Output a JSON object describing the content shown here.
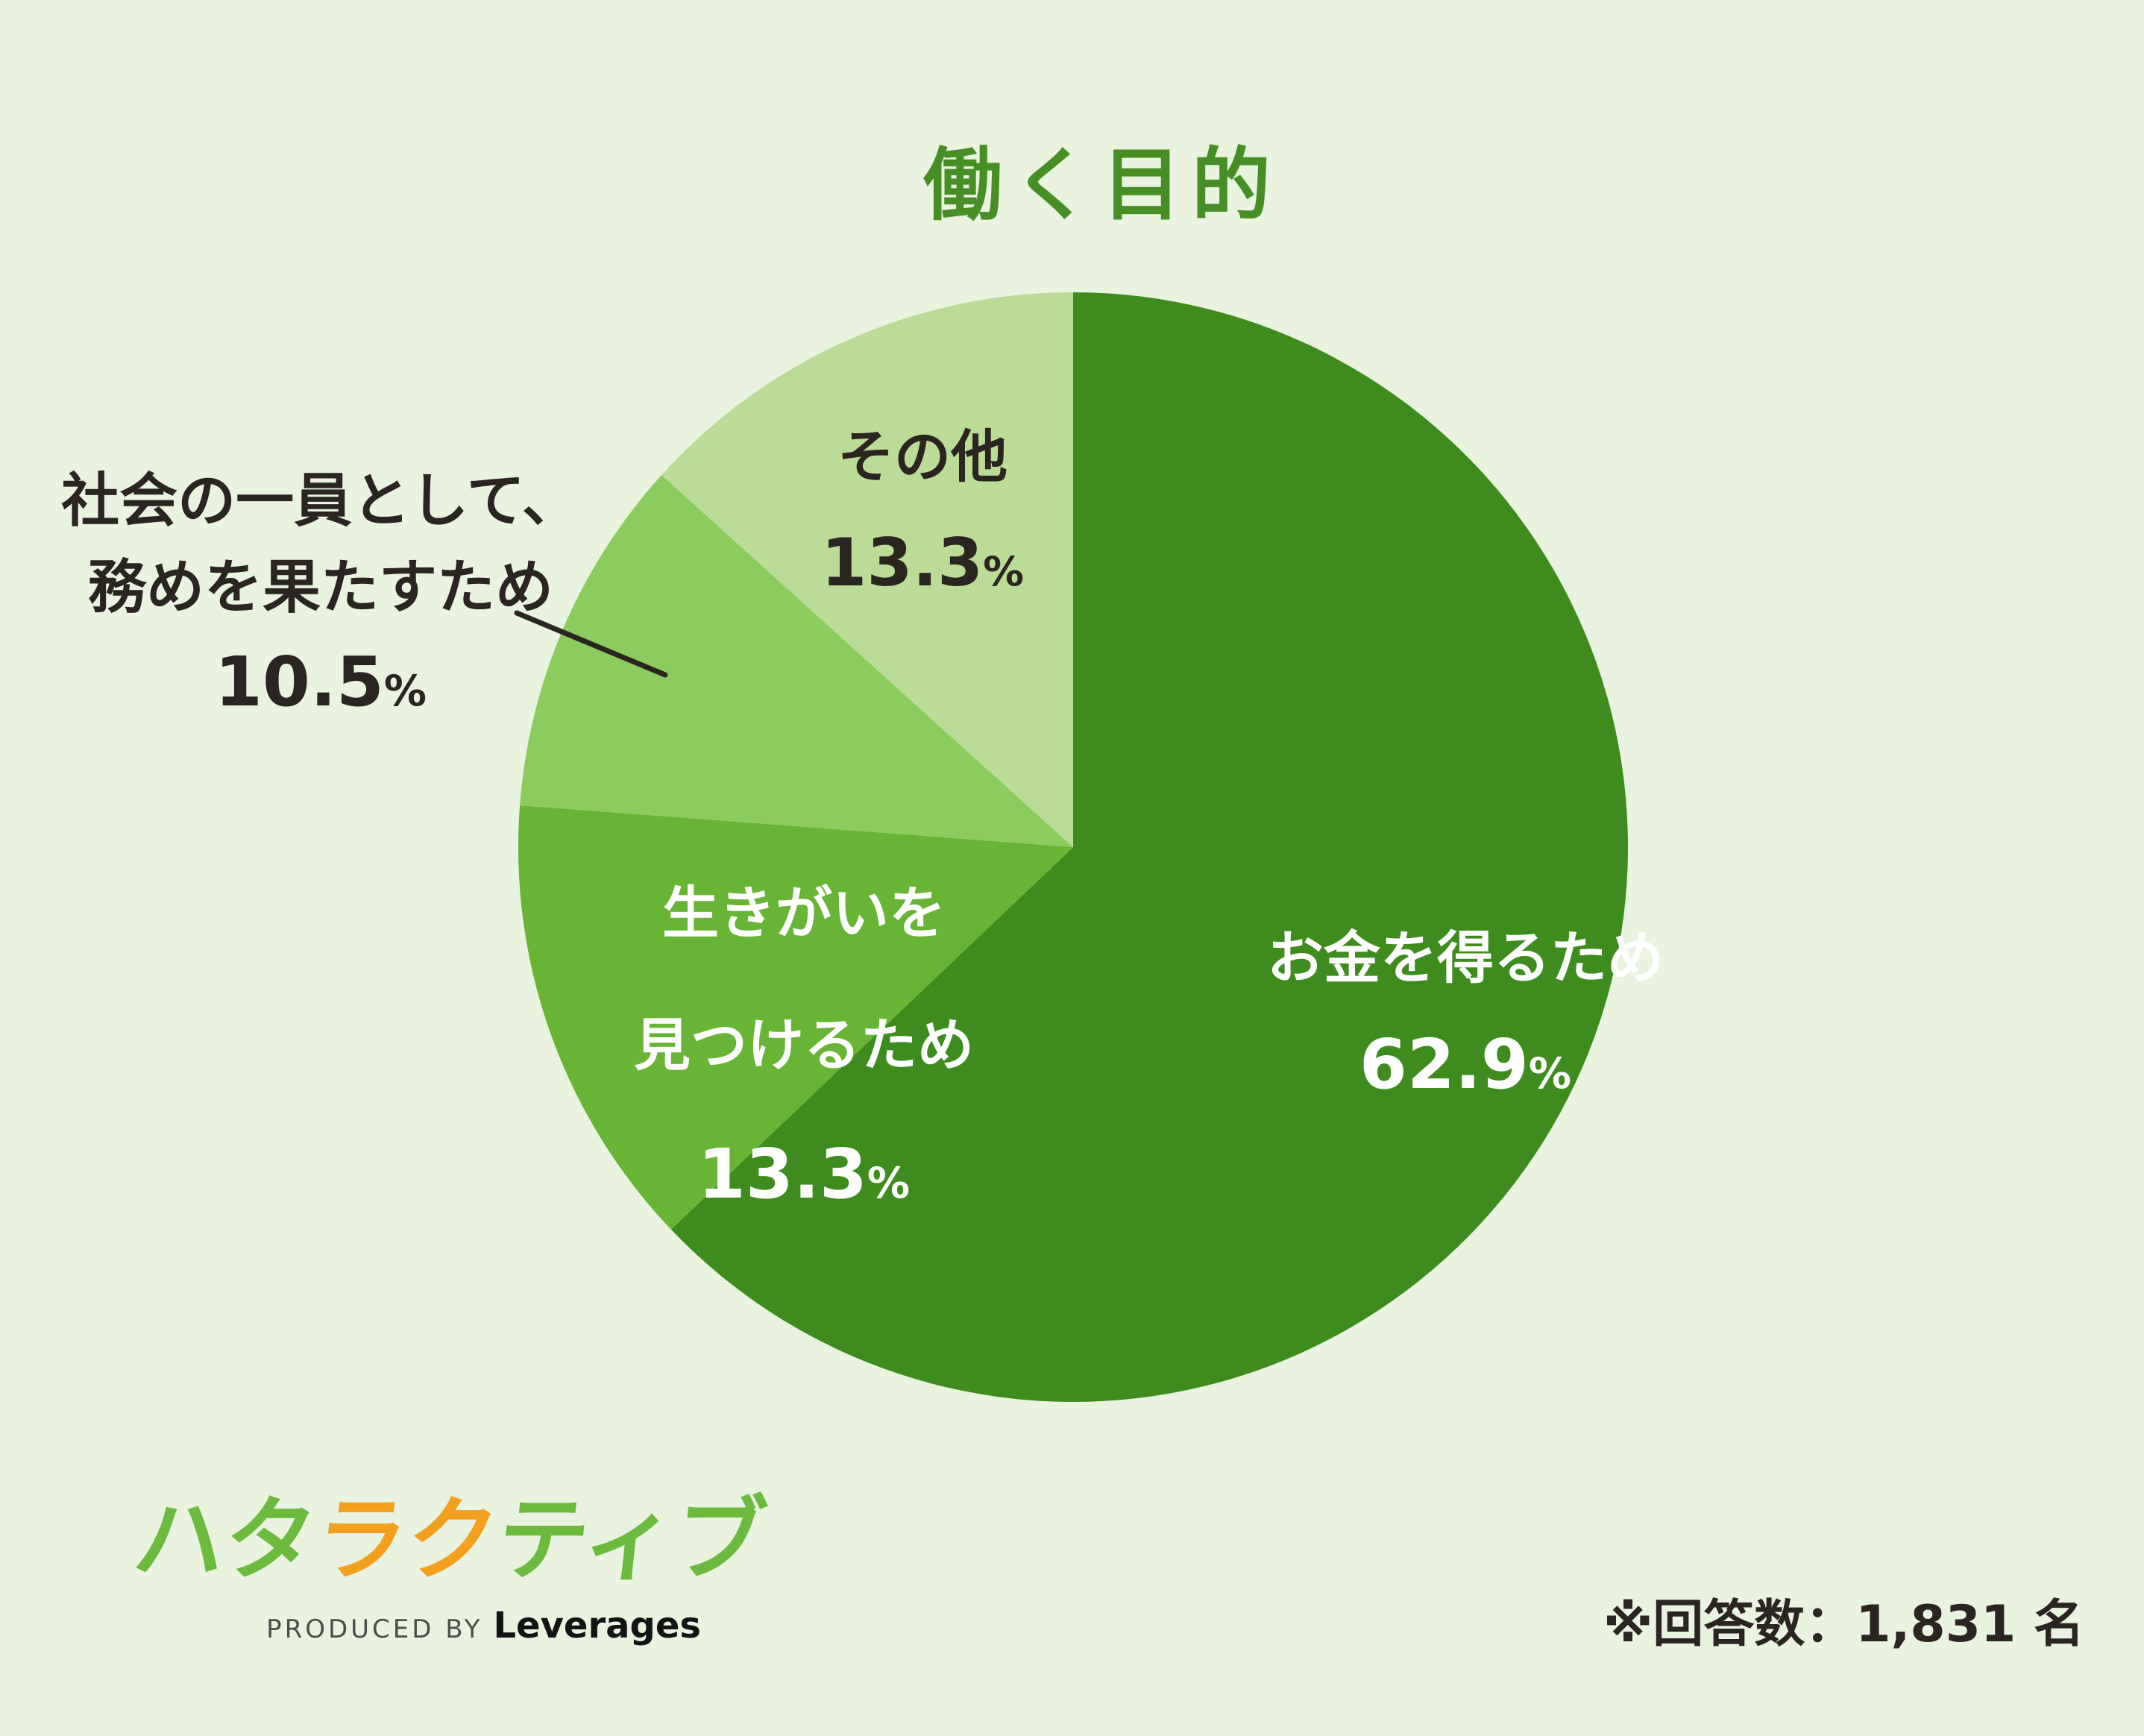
{
  "chart_data": {
    "type": "pie",
    "title": "働く目的",
    "direction": "clockwise",
    "start_angle_deg": 0,
    "legend": "none",
    "slices": [
      {
        "label": "お金を得るため",
        "value": 62.9,
        "pct": "62.9",
        "color": "#3E8C1E",
        "label_lines": [
          "お金を得るため"
        ],
        "label_placement": "inside"
      },
      {
        "label": "生きがいを見つけるため",
        "value": 13.3,
        "pct": "13.3",
        "color": "#68B434",
        "label_lines": [
          "生きがいを",
          "見つけるため"
        ],
        "label_placement": "inside"
      },
      {
        "label": "社会の一員として、務めを果たすため",
        "value": 10.5,
        "pct": "10.5",
        "color": "#8CCB5E",
        "label_lines": [
          "社会の一員として、",
          "務めを果たすため"
        ],
        "label_placement": "outside-with-leader-line"
      },
      {
        "label": "その他",
        "value": 13.3,
        "pct": "13.3",
        "color": "#BADC97",
        "label_lines": [
          "その他"
        ],
        "label_placement": "inside"
      }
    ],
    "annotation": "※回答数：1,831 名"
  },
  "ui": {
    "percent_sign": "%"
  },
  "footer": {
    "note": "※回答数：1,831 名"
  },
  "logo": {
    "kana_parts": [
      {
        "text": "ハタ",
        "color": "#6CBA3E"
      },
      {
        "text": "ラク",
        "color": "#F2A01E"
      },
      {
        "text": "ティブ",
        "color": "#6CBA3E"
      }
    ],
    "produced_by": "PRODUCED BY",
    "company": "Leverages"
  },
  "colors": {
    "background": "#E9F3DF",
    "title_green": "#478F25",
    "dark_text": "#2A2521",
    "white_text": "#FFFFFF",
    "leader_line": "#2A2521",
    "logo_green": "#6CBA3E",
    "logo_orange": "#F2A01E"
  }
}
